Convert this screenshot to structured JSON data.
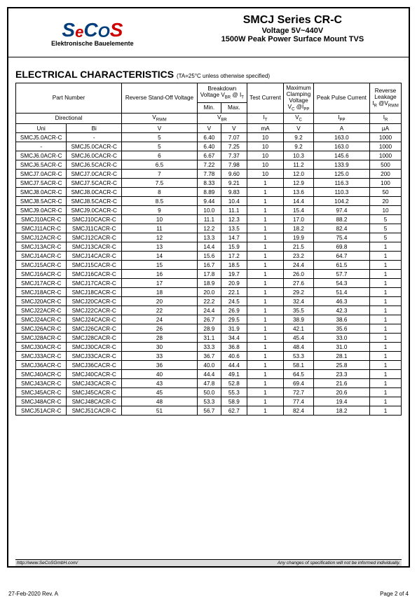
{
  "logo": {
    "s1": "S",
    "e": "e",
    "c": "C",
    "o": "O",
    "s2": "S",
    "subtitle": "Elektronische Bauelemente"
  },
  "header": {
    "title": "SMCJ Series CR-C",
    "sub1": "Voltage 5V~440V",
    "sub2": "1500W Peak Power Surface Mount TVS"
  },
  "section": {
    "title": "ELECTRICAL CHARACTERISTICS",
    "note": "(TA=25°C unless otherwise specified)"
  },
  "columns": {
    "part_number": "Part Number",
    "reverse_standoff": "Reverse Stand-Off Voltage",
    "breakdown": "Breakdown Voltage VBR @ IT",
    "min": "Min.",
    "max": "Max.",
    "test_current": "Test Current",
    "max_clamp": "Maximum Clamping Voltage VC @IPP",
    "peak_pulse": "Peak Pulse Current",
    "reverse_leak": "Reverse Leakage IR @VRWM",
    "directional": "Directional",
    "vrwm": "VRWM",
    "vbr": "VBR",
    "it": "IT",
    "vc": "VC",
    "ipp": "IPP",
    "ir": "IR",
    "uni": "Uni",
    "bi": "Bi",
    "v": "V",
    "ma": "mA",
    "a": "A",
    "ua": "µA"
  },
  "rows": [
    [
      "SMCJ5.0ACR-C",
      "-",
      "5",
      "6.40",
      "7.07",
      "10",
      "9.2",
      "163.0",
      "1000"
    ],
    [
      "-",
      "SMCJ5.0CACR-C",
      "5",
      "6.40",
      "7.25",
      "10",
      "9.2",
      "163.0",
      "1000"
    ],
    [
      "SMCJ6.0ACR-C",
      "SMCJ6.0CACR-C",
      "6",
      "6.67",
      "7.37",
      "10",
      "10.3",
      "145.6",
      "1000"
    ],
    [
      "SMCJ6.5ACR-C",
      "SMCJ6.5CACR-C",
      "6.5",
      "7.22",
      "7.98",
      "10",
      "11.2",
      "133.9",
      "500"
    ],
    [
      "SMCJ7.0ACR-C",
      "SMCJ7.0CACR-C",
      "7",
      "7.78",
      "9.60",
      "10",
      "12.0",
      "125.0",
      "200"
    ],
    [
      "SMCJ7.5ACR-C",
      "SMCJ7.5CACR-C",
      "7.5",
      "8.33",
      "9.21",
      "1",
      "12.9",
      "116.3",
      "100"
    ],
    [
      "SMCJ8.0ACR-C",
      "SMCJ8.0CACR-C",
      "8",
      "8.89",
      "9.83",
      "1",
      "13.6",
      "110.3",
      "50"
    ],
    [
      "SMCJ8.5ACR-C",
      "SMCJ8.5CACR-C",
      "8.5",
      "9.44",
      "10.4",
      "1",
      "14.4",
      "104.2",
      "20"
    ],
    [
      "SMCJ9.0ACR-C",
      "SMCJ9.0CACR-C",
      "9",
      "10.0",
      "11.1",
      "1",
      "15.4",
      "97.4",
      "10"
    ],
    [
      "SMCJ10ACR-C",
      "SMCJ10CACR-C",
      "10",
      "11.1",
      "12.3",
      "1",
      "17.0",
      "88.2",
      "5"
    ],
    [
      "SMCJ11ACR-C",
      "SMCJ11CACR-C",
      "11",
      "12.2",
      "13.5",
      "1",
      "18.2",
      "82.4",
      "5"
    ],
    [
      "SMCJ12ACR-C",
      "SMCJ12CACR-C",
      "12",
      "13.3",
      "14.7",
      "1",
      "19.9",
      "75.4",
      "5"
    ],
    [
      "SMCJ13ACR-C",
      "SMCJ13CACR-C",
      "13",
      "14.4",
      "15.9",
      "1",
      "21.5",
      "69.8",
      "1"
    ],
    [
      "SMCJ14ACR-C",
      "SMCJ14CACR-C",
      "14",
      "15.6",
      "17.2",
      "1",
      "23.2",
      "64.7",
      "1"
    ],
    [
      "SMCJ15ACR-C",
      "SMCJ15CACR-C",
      "15",
      "16.7",
      "18.5",
      "1",
      "24.4",
      "61.5",
      "1"
    ],
    [
      "SMCJ16ACR-C",
      "SMCJ16CACR-C",
      "16",
      "17.8",
      "19.7",
      "1",
      "26.0",
      "57.7",
      "1"
    ],
    [
      "SMCJ17ACR-C",
      "SMCJ17CACR-C",
      "17",
      "18.9",
      "20.9",
      "1",
      "27.6",
      "54.3",
      "1"
    ],
    [
      "SMCJ18ACR-C",
      "SMCJ18CACR-C",
      "18",
      "20.0",
      "22.1",
      "1",
      "29.2",
      "51.4",
      "1"
    ],
    [
      "SMCJ20ACR-C",
      "SMCJ20CACR-C",
      "20",
      "22.2",
      "24.5",
      "1",
      "32.4",
      "46.3",
      "1"
    ],
    [
      "SMCJ22ACR-C",
      "SMCJ22CACR-C",
      "22",
      "24.4",
      "26.9",
      "1",
      "35.5",
      "42.3",
      "1"
    ],
    [
      "SMCJ24ACR-C",
      "SMCJ24CACR-C",
      "24",
      "26.7",
      "29.5",
      "1",
      "38.9",
      "38.6",
      "1"
    ],
    [
      "SMCJ26ACR-C",
      "SMCJ26CACR-C",
      "26",
      "28.9",
      "31.9",
      "1",
      "42.1",
      "35.6",
      "1"
    ],
    [
      "SMCJ28ACR-C",
      "SMCJ28CACR-C",
      "28",
      "31.1",
      "34.4",
      "1",
      "45.4",
      "33.0",
      "1"
    ],
    [
      "SMCJ30ACR-C",
      "SMCJ30CACR-C",
      "30",
      "33.3",
      "36.8",
      "1",
      "48.4",
      "31.0",
      "1"
    ],
    [
      "SMCJ33ACR-C",
      "SMCJ33CACR-C",
      "33",
      "36.7",
      "40.6",
      "1",
      "53.3",
      "28.1",
      "1"
    ],
    [
      "SMCJ36ACR-C",
      "SMCJ36CACR-C",
      "36",
      "40.0",
      "44.4",
      "1",
      "58.1",
      "25.8",
      "1"
    ],
    [
      "SMCJ40ACR-C",
      "SMCJ40CACR-C",
      "40",
      "44.4",
      "49.1",
      "1",
      "64.5",
      "23.3",
      "1"
    ],
    [
      "SMCJ43ACR-C",
      "SMCJ43CACR-C",
      "43",
      "47.8",
      "52.8",
      "1",
      "69.4",
      "21.6",
      "1"
    ],
    [
      "SMCJ45ACR-C",
      "SMCJ45CACR-C",
      "45",
      "50.0",
      "55.3",
      "1",
      "72.7",
      "20.6",
      "1"
    ],
    [
      "SMCJ48ACR-C",
      "SMCJ48CACR-C",
      "48",
      "53.3",
      "58.9",
      "1",
      "77.4",
      "19.4",
      "1"
    ],
    [
      "SMCJ51ACR-C",
      "SMCJ51CACR-C",
      "51",
      "56.7",
      "62.7",
      "1",
      "82.4",
      "18.2",
      "1"
    ]
  ],
  "footer": {
    "url": "http://www.SeCoSGmbH.com/",
    "disclaimer": "Any changes of specification will not be informed individually.",
    "date": "27-Feb-2020 Rev. A",
    "page": "Page  2  of  4"
  }
}
